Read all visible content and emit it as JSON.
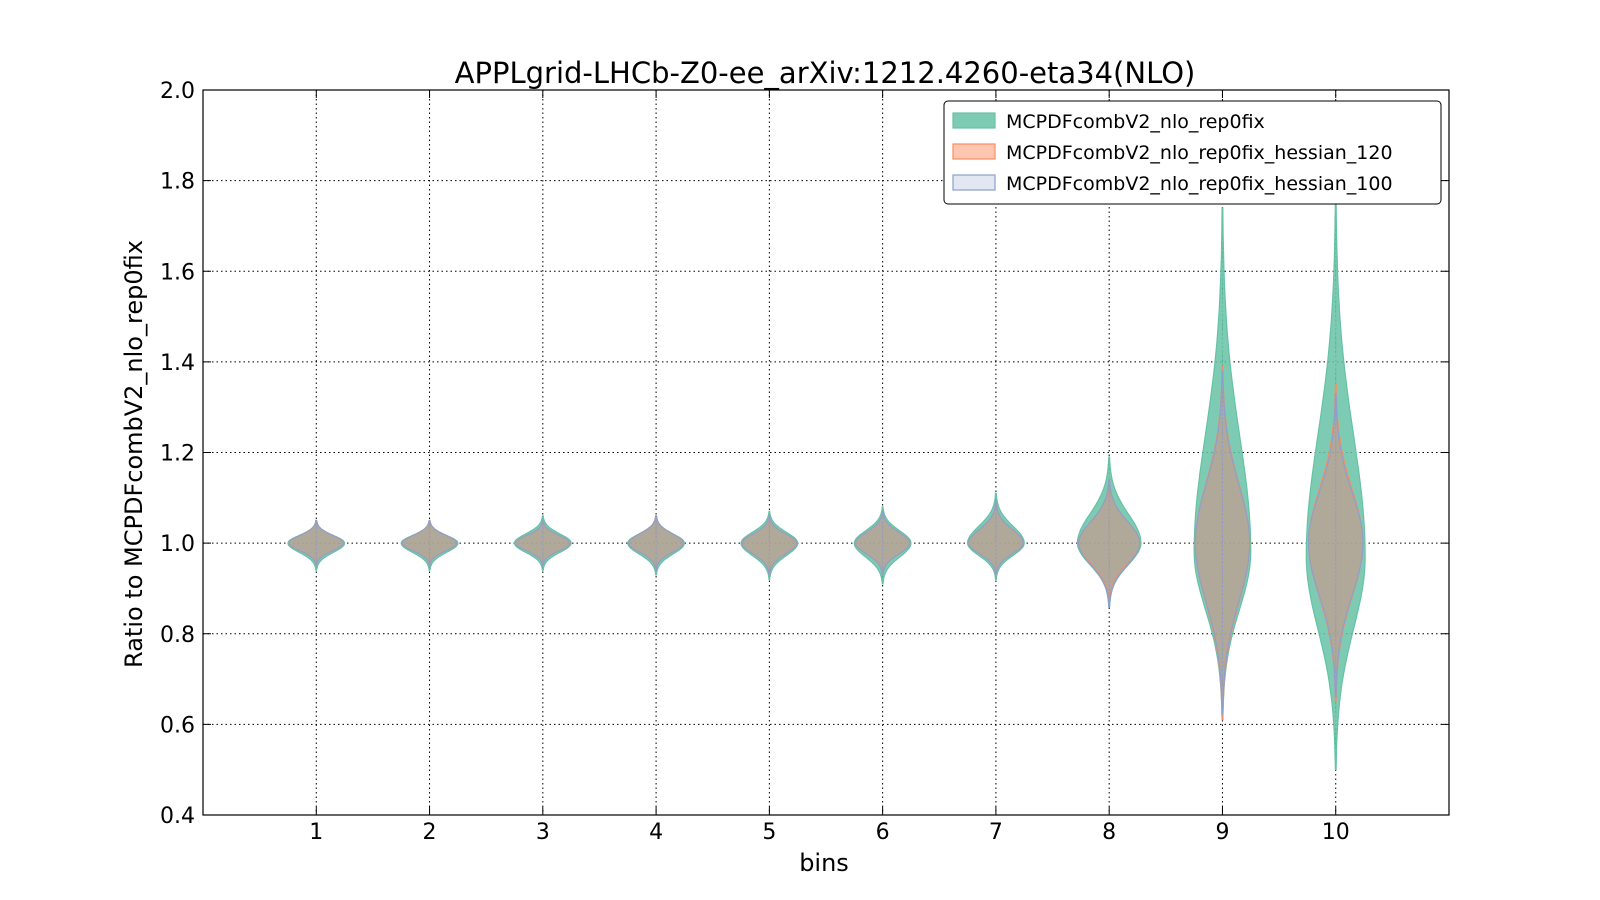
{
  "chart_data": {
    "type": "violin",
    "title": "APPLgrid-LHCb-Z0-ee_arXiv:1212.4260-eta34(NLO)",
    "xlabel": "bins",
    "ylabel": "Ratio to MCPDFcombV2_nlo_rep0fix",
    "ylim": [
      0.4,
      2.0
    ],
    "xlim": [
      0,
      11
    ],
    "grid": true,
    "legend_position": "top-right",
    "x_ticks": [
      1,
      2,
      3,
      4,
      5,
      6,
      7,
      8,
      9,
      10
    ],
    "x_tick_labels": [
      "1",
      "2",
      "3",
      "4",
      "5",
      "6",
      "7",
      "8",
      "9",
      "10"
    ],
    "y_ticks": [
      0.4,
      0.6,
      0.8,
      1.0,
      1.2,
      1.4,
      1.6,
      1.8,
      2.0
    ],
    "y_tick_labels": [
      "0.4",
      "0.6",
      "0.8",
      "1.0",
      "1.2",
      "1.4",
      "1.6",
      "1.8",
      "2.0"
    ],
    "series": [
      {
        "name": "MCPDFcombV2_nlo_rep0fix",
        "color": "#66c2a5",
        "violins": [
          {
            "bin": 1,
            "min": 0.94,
            "max": 1.05,
            "center": 1.0,
            "halfwidth": 0.25
          },
          {
            "bin": 2,
            "min": 0.94,
            "max": 1.05,
            "center": 1.0,
            "halfwidth": 0.25
          },
          {
            "bin": 3,
            "min": 0.94,
            "max": 1.06,
            "center": 1.0,
            "halfwidth": 0.25
          },
          {
            "bin": 4,
            "min": 0.93,
            "max": 1.06,
            "center": 1.0,
            "halfwidth": 0.25
          },
          {
            "bin": 5,
            "min": 0.92,
            "max": 1.07,
            "center": 1.0,
            "halfwidth": 0.25
          },
          {
            "bin": 6,
            "min": 0.91,
            "max": 1.08,
            "center": 1.0,
            "halfwidth": 0.25
          },
          {
            "bin": 7,
            "min": 0.92,
            "max": 1.11,
            "center": 1.0,
            "halfwidth": 0.25
          },
          {
            "bin": 8,
            "min": 0.86,
            "max": 1.19,
            "center": 1.0,
            "halfwidth": 0.28
          },
          {
            "bin": 9,
            "min": 0.61,
            "max": 1.74,
            "center": 0.98,
            "halfwidth": 0.25
          },
          {
            "bin": 10,
            "min": 0.5,
            "max": 1.76,
            "center": 0.97,
            "halfwidth": 0.26
          }
        ]
      },
      {
        "name": "MCPDFcombV2_nlo_rep0fix_hessian_120",
        "color": "#fc8d62",
        "violins": [
          {
            "bin": 1,
            "min": 0.95,
            "max": 1.05,
            "center": 1.0,
            "halfwidth": 0.24
          },
          {
            "bin": 2,
            "min": 0.95,
            "max": 1.05,
            "center": 1.0,
            "halfwidth": 0.24
          },
          {
            "bin": 3,
            "min": 0.95,
            "max": 1.05,
            "center": 1.0,
            "halfwidth": 0.24
          },
          {
            "bin": 4,
            "min": 0.94,
            "max": 1.06,
            "center": 1.0,
            "halfwidth": 0.24
          },
          {
            "bin": 5,
            "min": 0.93,
            "max": 1.06,
            "center": 1.0,
            "halfwidth": 0.24
          },
          {
            "bin": 6,
            "min": 0.93,
            "max": 1.07,
            "center": 1.0,
            "halfwidth": 0.24
          },
          {
            "bin": 7,
            "min": 0.93,
            "max": 1.09,
            "center": 1.0,
            "halfwidth": 0.24
          },
          {
            "bin": 8,
            "min": 0.87,
            "max": 1.14,
            "center": 1.0,
            "halfwidth": 0.27
          },
          {
            "bin": 9,
            "min": 0.61,
            "max": 1.39,
            "center": 1.0,
            "halfwidth": 0.24
          },
          {
            "bin": 10,
            "min": 0.65,
            "max": 1.35,
            "center": 1.0,
            "halfwidth": 0.24
          }
        ]
      },
      {
        "name": "MCPDFcombV2_nlo_rep0fix_hessian_100",
        "color": "#8da0cb",
        "violins": [
          {
            "bin": 1,
            "min": 0.95,
            "max": 1.05,
            "center": 1.0,
            "halfwidth": 0.24
          },
          {
            "bin": 2,
            "min": 0.95,
            "max": 1.05,
            "center": 1.0,
            "halfwidth": 0.24
          },
          {
            "bin": 3,
            "min": 0.95,
            "max": 1.05,
            "center": 1.0,
            "halfwidth": 0.24
          },
          {
            "bin": 4,
            "min": 0.94,
            "max": 1.06,
            "center": 1.0,
            "halfwidth": 0.24
          },
          {
            "bin": 5,
            "min": 0.93,
            "max": 1.06,
            "center": 1.0,
            "halfwidth": 0.24
          },
          {
            "bin": 6,
            "min": 0.93,
            "max": 1.07,
            "center": 1.0,
            "halfwidth": 0.24
          },
          {
            "bin": 7,
            "min": 0.93,
            "max": 1.09,
            "center": 1.0,
            "halfwidth": 0.24
          },
          {
            "bin": 8,
            "min": 0.86,
            "max": 1.14,
            "center": 1.0,
            "halfwidth": 0.27
          },
          {
            "bin": 9,
            "min": 0.62,
            "max": 1.38,
            "center": 1.0,
            "halfwidth": 0.24
          },
          {
            "bin": 10,
            "min": 0.66,
            "max": 1.33,
            "center": 1.0,
            "halfwidth": 0.24
          }
        ]
      }
    ]
  }
}
